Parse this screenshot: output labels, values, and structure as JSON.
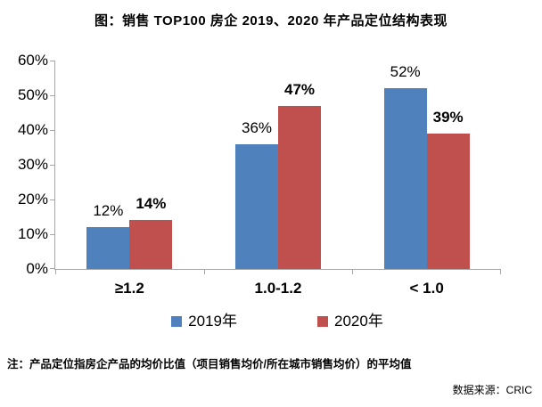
{
  "title": "图：销售 TOP100 房企 2019、2020 年产品定位结构表现",
  "chart_data": {
    "type": "bar",
    "categories": [
      "≥1.2",
      "1.0-1.2",
      "< 1.0"
    ],
    "series": [
      {
        "name": "2019年",
        "color": "#4F81BD",
        "values": [
          12,
          36,
          52
        ],
        "data_labels": [
          "12%",
          "36%",
          "52%"
        ],
        "bold_labels": false
      },
      {
        "name": "2020年",
        "color": "#C0504D",
        "values": [
          14,
          47,
          39
        ],
        "data_labels": [
          "14%",
          "47%",
          "39%"
        ],
        "bold_labels": true
      }
    ],
    "ylim": [
      0,
      60
    ],
    "yticks": [
      "0%",
      "10%",
      "20%",
      "30%",
      "40%",
      "50%",
      "60%"
    ],
    "grid": false,
    "legend_position": "bottom",
    "axis_color": "#a6a6a6"
  },
  "note": "注：产品定位指房企产品的均价比值（项目销售均价/所在城市销售均价）的平均值",
  "source": "数据来源：CRIC"
}
